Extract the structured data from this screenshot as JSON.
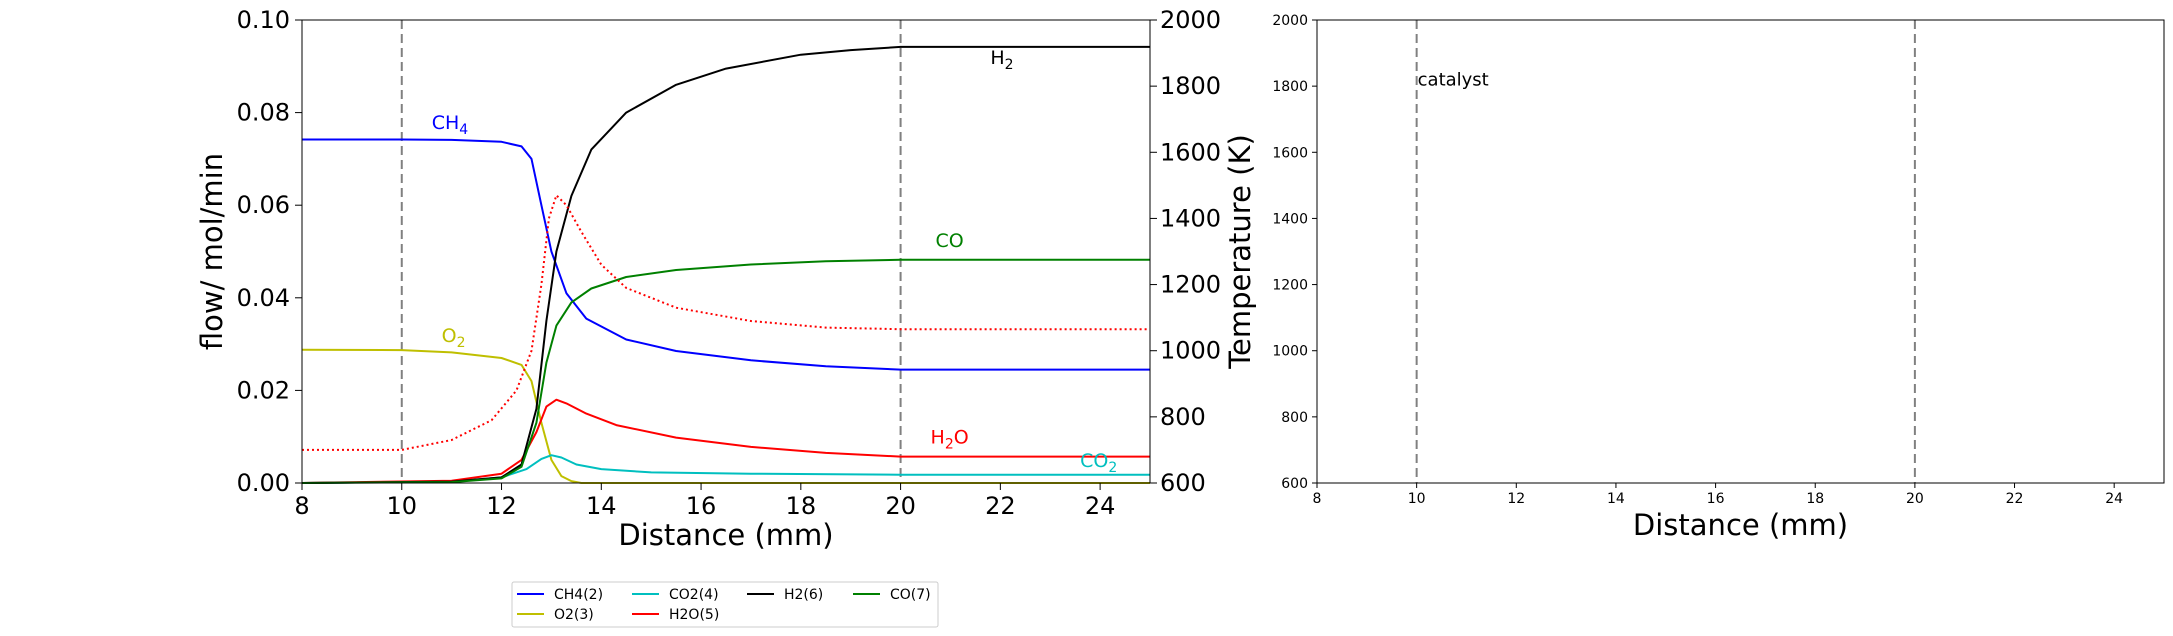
{
  "chart_data": [
    {
      "type": "line",
      "x_label": "Distance (mm)",
      "y_label": "flow/ mol/min",
      "y2_label": "Temperature (K)",
      "xlim": [
        8,
        25
      ],
      "ylim": [
        0,
        0.1
      ],
      "y2lim": [
        600,
        2000
      ],
      "x_ticks": [
        8,
        10,
        12,
        14,
        16,
        18,
        20,
        22,
        24
      ],
      "y_ticks": [
        "0.00",
        "0.02",
        "0.04",
        "0.06",
        "0.08",
        "0.10"
      ],
      "y2_ticks": [
        600,
        800,
        1000,
        1200,
        1400,
        1600,
        1800,
        2000
      ],
      "vlines": [
        10,
        20
      ],
      "series": [
        {
          "name": "CH4(2)",
          "color": "#0000ff",
          "x": [
            8,
            10,
            11,
            12,
            12.4,
            12.6,
            12.8,
            13,
            13.3,
            13.7,
            14.5,
            15.5,
            17,
            18.5,
            20,
            25
          ],
          "y": [
            0.0742,
            0.0742,
            0.0741,
            0.0737,
            0.0727,
            0.07,
            0.06,
            0.05,
            0.041,
            0.0355,
            0.031,
            0.0285,
            0.0265,
            0.0252,
            0.0245,
            0.0245
          ]
        },
        {
          "name": "O2(3)",
          "color": "#bfbf00",
          "x": [
            8,
            10,
            11,
            12,
            12.4,
            12.6,
            12.8,
            13,
            13.2,
            13.4,
            13.6,
            25
          ],
          "y": [
            0.0288,
            0.0287,
            0.0282,
            0.027,
            0.0255,
            0.022,
            0.013,
            0.005,
            0.0015,
            0.0004,
            0.0,
            0.0
          ]
        },
        {
          "name": "CO2(4)",
          "color": "#00bfbf",
          "x": [
            8,
            11,
            12,
            12.5,
            12.8,
            13,
            13.2,
            13.5,
            14,
            15,
            17,
            20,
            25
          ],
          "y": [
            0.0,
            0.0003,
            0.0012,
            0.003,
            0.0052,
            0.006,
            0.0055,
            0.004,
            0.003,
            0.0023,
            0.002,
            0.0018,
            0.0018
          ]
        },
        {
          "name": "H2O(5)",
          "color": "#ff0000",
          "x": [
            8,
            11,
            12,
            12.4,
            12.7,
            12.9,
            13.1,
            13.3,
            13.7,
            14.3,
            15.5,
            17,
            18.5,
            20,
            25
          ],
          "y": [
            0.0,
            0.0005,
            0.002,
            0.005,
            0.011,
            0.0165,
            0.018,
            0.0172,
            0.015,
            0.0125,
            0.0098,
            0.0078,
            0.0065,
            0.0057,
            0.0057
          ]
        },
        {
          "name": "H2(6)",
          "color": "#000000",
          "x": [
            8,
            11,
            12,
            12.4,
            12.7,
            12.9,
            13.1,
            13.4,
            13.8,
            14.5,
            15.5,
            16.5,
            18,
            19,
            20,
            25
          ],
          "y": [
            0.0,
            0.0003,
            0.0012,
            0.004,
            0.016,
            0.035,
            0.05,
            0.062,
            0.072,
            0.08,
            0.086,
            0.0895,
            0.0925,
            0.0935,
            0.0942,
            0.0942
          ]
        },
        {
          "name": "CO(7)",
          "color": "#008000",
          "x": [
            8,
            11,
            12,
            12.4,
            12.7,
            12.9,
            13.1,
            13.4,
            13.8,
            14.5,
            15.5,
            17,
            18.5,
            20,
            25
          ],
          "y": [
            0.0,
            0.0002,
            0.001,
            0.0035,
            0.013,
            0.026,
            0.034,
            0.039,
            0.042,
            0.0445,
            0.046,
            0.0472,
            0.0479,
            0.0482,
            0.0482
          ]
        }
      ],
      "temperature": {
        "color": "#ff0000",
        "style": "dotted",
        "x": [
          8,
          10,
          11,
          11.8,
          12.3,
          12.6,
          12.8,
          12.95,
          13.1,
          13.3,
          13.6,
          14,
          14.5,
          15.5,
          17,
          18.5,
          20,
          25
        ],
        "y": [
          700,
          700,
          730,
          790,
          880,
          1000,
          1200,
          1400,
          1470,
          1440,
          1360,
          1260,
          1190,
          1130,
          1090,
          1070,
          1065,
          1065
        ]
      },
      "annotations": [
        {
          "base": "CH",
          "sub": "4",
          "after": "",
          "x": 10.6,
          "y": 0.0765,
          "color": "#0000ff"
        },
        {
          "base": "O",
          "sub": "2",
          "after": "",
          "x": 10.8,
          "y": 0.0305,
          "color": "#bfbf00"
        },
        {
          "base": "H",
          "sub": "2",
          "after": "",
          "x": 21.8,
          "y": 0.0905,
          "color": "#000000"
        },
        {
          "base": "CO",
          "sub": "",
          "after": "",
          "x": 20.7,
          "y": 0.051,
          "color": "#008000"
        },
        {
          "base": "H",
          "sub": "2",
          "after": "O",
          "x": 20.6,
          "y": 0.0085,
          "color": "#ff0000"
        },
        {
          "base": "CO",
          "sub": "2",
          "after": "",
          "x": 23.6,
          "y": 0.0035,
          "color": "#00bfbf"
        }
      ],
      "legend": {
        "placement": "below",
        "columns": 4
      }
    },
    {
      "type": "line",
      "x_label": "Distance (mm)",
      "xlim": [
        8,
        25
      ],
      "ylim": [
        600,
        2000
      ],
      "x_ticks": [
        8,
        10,
        12,
        14,
        16,
        18,
        20,
        22,
        24
      ],
      "y_ticks": [
        600,
        800,
        1000,
        1200,
        1400,
        1600,
        1800,
        2000
      ],
      "vlines": [
        10,
        20
      ],
      "annotation": {
        "text": "catalyst",
        "x": 10,
        "y": 1820
      }
    }
  ]
}
